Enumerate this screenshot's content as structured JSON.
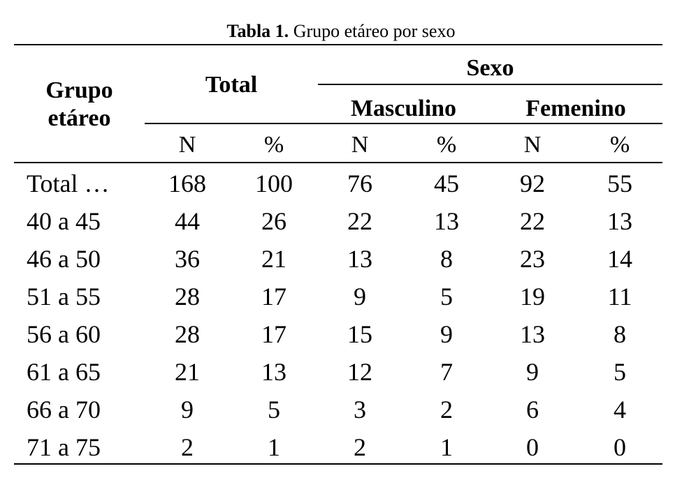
{
  "caption": {
    "label": "Tabla 1.",
    "text": "Grupo etáreo por sexo"
  },
  "headers": {
    "group_line1": "Grupo",
    "group_line2": "etáreo",
    "total": "Total",
    "sexo": "Sexo",
    "masculino": "Masculino",
    "femenino": "Femenino",
    "sub": [
      "N",
      "%",
      "N",
      "%",
      "N",
      "%"
    ]
  },
  "rows": [
    {
      "label": "Total …",
      "values": [
        "168",
        "100",
        "76",
        "45",
        "92",
        "55"
      ]
    },
    {
      "label": "40 a 45",
      "values": [
        "44",
        "26",
        "22",
        "13",
        "22",
        "13"
      ]
    },
    {
      "label": "46 a 50",
      "values": [
        "36",
        "21",
        "13",
        "8",
        "23",
        "14"
      ]
    },
    {
      "label": "51 a 55",
      "values": [
        "28",
        "17",
        "9",
        "5",
        "19",
        "11"
      ]
    },
    {
      "label": "56 a 60",
      "values": [
        "28",
        "17",
        "15",
        "9",
        "13",
        "8"
      ]
    },
    {
      "label": "61 a 65",
      "values": [
        "21",
        "13",
        "12",
        "7",
        "9",
        "5"
      ]
    },
    {
      "label": "66 a 70",
      "values": [
        "9",
        "5",
        "3",
        "2",
        "6",
        "4"
      ]
    },
    {
      "label": "71 a 75",
      "values": [
        "2",
        "1",
        "2",
        "1",
        "0",
        "0"
      ]
    }
  ]
}
